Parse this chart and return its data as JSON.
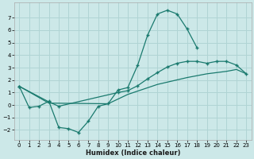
{
  "xlabel": "Humidex (Indice chaleur)",
  "bg_color": "#cce8e8",
  "grid_color": "#b0d4d4",
  "line_color": "#1a7a6e",
  "xlim": [
    -0.5,
    23.5
  ],
  "ylim": [
    -2.8,
    8.2
  ],
  "xticks": [
    0,
    1,
    2,
    3,
    4,
    5,
    6,
    7,
    8,
    9,
    10,
    11,
    12,
    13,
    14,
    15,
    16,
    17,
    18,
    19,
    20,
    21,
    22,
    23
  ],
  "yticks": [
    -2,
    -1,
    0,
    1,
    2,
    3,
    4,
    5,
    6,
    7
  ],
  "curve1_x": [
    0,
    1,
    2,
    3,
    4,
    5,
    6,
    7,
    8,
    9,
    10,
    11,
    12,
    13,
    14,
    15,
    16,
    17,
    18
  ],
  "curve1_y": [
    1.5,
    -0.2,
    -0.1,
    0.3,
    -1.8,
    -1.9,
    -2.2,
    -1.3,
    -0.1,
    0.1,
    1.2,
    1.4,
    3.2,
    5.6,
    7.3,
    7.6,
    7.3,
    6.1,
    4.6
  ],
  "curve2_x": [
    0,
    3,
    4,
    10,
    11,
    12,
    13,
    14,
    15,
    16,
    17,
    18,
    19,
    20,
    21,
    22,
    23
  ],
  "curve2_y": [
    1.5,
    0.25,
    -0.1,
    1.0,
    1.15,
    1.55,
    2.1,
    2.6,
    3.05,
    3.35,
    3.5,
    3.5,
    3.35,
    3.5,
    3.5,
    3.2,
    2.5
  ],
  "curve3_x": [
    0,
    3,
    9,
    11,
    14,
    17,
    19,
    21,
    22,
    23
  ],
  "curve3_y": [
    1.5,
    0.15,
    0.1,
    0.85,
    1.65,
    2.2,
    2.5,
    2.7,
    2.85,
    2.5
  ]
}
